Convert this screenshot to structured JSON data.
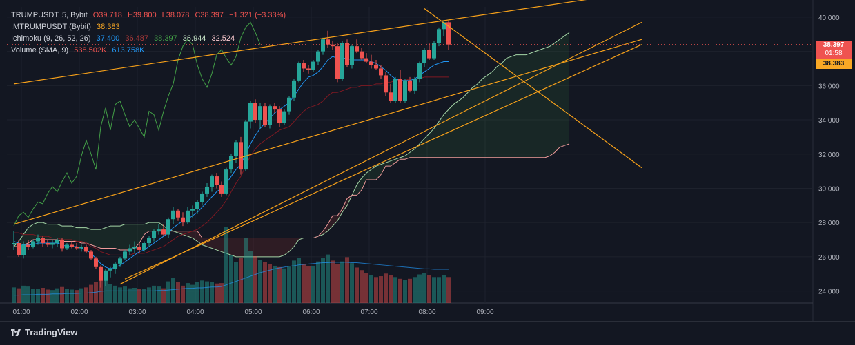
{
  "legend": {
    "row1": {
      "symbol": "TRUMPUSDT, 5, Bybit",
      "o": "O39.718",
      "h": "H39.800",
      "l": "L38.078",
      "c": "C38.397",
      "chg": "−1.321 (−3.33%)"
    },
    "row2": {
      "name": ".MTRUMPUSDT (Bybit)",
      "value": "38.383"
    },
    "row3": {
      "name": "Ichimoku (9, 26, 52, 26)",
      "v1": "37.400",
      "v2": "36.487",
      "v3": "38.397",
      "v4": "36.944",
      "v5": "32.524"
    },
    "row4": {
      "name": "Volume (SMA, 9)",
      "v1": "538.502K",
      "v2": "613.758K"
    }
  },
  "price_tags": {
    "last_price": "38.397",
    "countdown": "01:58",
    "mark_price": "38.383"
  },
  "footer": {
    "brand": "TradingView"
  },
  "colors": {
    "background": "#131722",
    "up": "#26a69a",
    "down": "#ef5350",
    "tenkan": "#2196f3",
    "kijun": "#801922",
    "chikou": "#43a047",
    "span_a": "#a5d6a7",
    "span_b": "#ef9a9a",
    "trendline": "#f7a11a"
  },
  "chart_data": {
    "type": "candlestick",
    "y_axis": {
      "ticks": [
        "40.000",
        "38.000",
        "36.000",
        "34.000",
        "32.000",
        "30.000",
        "28.000",
        "26.000",
        "24.000"
      ],
      "range": [
        23.3,
        40.6
      ]
    },
    "x_axis": {
      "ticks": [
        "01:00",
        "02:00",
        "03:00",
        "04:00",
        "05:00",
        "06:00",
        "07:00",
        "08:00",
        "09:00"
      ]
    },
    "candles": [
      [
        26.8,
        27.5,
        26.4,
        26.8
      ],
      [
        26.8,
        27.0,
        26.0,
        26.1
      ],
      [
        26.1,
        26.9,
        25.9,
        26.7
      ],
      [
        26.7,
        27.0,
        26.4,
        26.6
      ],
      [
        26.6,
        27.0,
        26.5,
        26.9
      ],
      [
        26.9,
        27.3,
        26.7,
        27.1
      ],
      [
        27.1,
        27.2,
        26.6,
        26.8
      ],
      [
        26.8,
        27.0,
        26.6,
        26.7
      ],
      [
        26.7,
        27.0,
        26.5,
        26.8
      ],
      [
        26.8,
        27.1,
        26.6,
        27.0
      ],
      [
        27.0,
        27.1,
        26.3,
        26.5
      ],
      [
        26.5,
        26.8,
        26.4,
        26.7
      ],
      [
        26.7,
        26.9,
        26.5,
        26.6
      ],
      [
        26.6,
        26.8,
        26.4,
        26.5
      ],
      [
        26.5,
        26.7,
        26.3,
        26.6
      ],
      [
        26.6,
        26.7,
        26.2,
        26.3
      ],
      [
        26.3,
        26.4,
        25.8,
        25.9
      ],
      [
        25.9,
        26.0,
        25.3,
        25.4
      ],
      [
        25.4,
        25.5,
        24.2,
        24.6
      ],
      [
        24.6,
        25.3,
        24.3,
        25.2
      ],
      [
        25.2,
        25.4,
        24.8,
        25.3
      ],
      [
        25.3,
        25.7,
        25.0,
        25.6
      ],
      [
        25.6,
        26.0,
        25.4,
        25.9
      ],
      [
        25.9,
        26.4,
        25.8,
        26.3
      ],
      [
        26.3,
        26.7,
        26.1,
        26.5
      ],
      [
        26.5,
        26.9,
        26.2,
        26.6
      ],
      [
        26.6,
        26.8,
        26.2,
        26.4
      ],
      [
        26.4,
        26.9,
        26.3,
        26.8
      ],
      [
        26.8,
        27.2,
        26.6,
        27.1
      ],
      [
        27.1,
        27.6,
        26.9,
        27.5
      ],
      [
        27.5,
        27.9,
        27.3,
        27.6
      ],
      [
        27.6,
        27.9,
        27.2,
        27.3
      ],
      [
        27.3,
        28.3,
        27.1,
        28.2
      ],
      [
        28.2,
        28.9,
        27.9,
        28.7
      ],
      [
        28.7,
        28.8,
        28.1,
        28.3
      ],
      [
        28.3,
        28.6,
        27.8,
        28.0
      ],
      [
        28.0,
        28.9,
        27.9,
        28.7
      ],
      [
        28.7,
        29.0,
        28.3,
        28.8
      ],
      [
        28.8,
        29.3,
        28.5,
        29.2
      ],
      [
        29.2,
        29.8,
        29.0,
        29.7
      ],
      [
        29.7,
        30.3,
        29.5,
        30.1
      ],
      [
        30.1,
        30.8,
        29.8,
        30.7
      ],
      [
        30.7,
        30.9,
        30.0,
        30.2
      ],
      [
        30.2,
        30.4,
        29.5,
        29.7
      ],
      [
        29.7,
        31.2,
        29.6,
        31.1
      ],
      [
        31.1,
        32.0,
        30.9,
        31.9
      ],
      [
        31.9,
        32.8,
        31.5,
        32.7
      ],
      [
        32.7,
        33.0,
        30.8,
        31.1
      ],
      [
        31.1,
        34.0,
        31.0,
        33.9
      ],
      [
        33.9,
        35.1,
        33.5,
        35.0
      ],
      [
        35.0,
        35.2,
        33.8,
        34.0
      ],
      [
        34.0,
        35.0,
        33.5,
        34.8
      ],
      [
        34.8,
        35.0,
        33.6,
        33.7
      ],
      [
        33.7,
        34.9,
        33.5,
        34.8
      ],
      [
        34.8,
        35.0,
        34.4,
        34.6
      ],
      [
        34.6,
        34.8,
        33.6,
        33.8
      ],
      [
        33.8,
        34.6,
        33.7,
        34.5
      ],
      [
        34.5,
        35.4,
        34.3,
        35.3
      ],
      [
        35.3,
        36.4,
        35.1,
        36.3
      ],
      [
        36.3,
        37.4,
        36.2,
        37.3
      ],
      [
        37.3,
        37.5,
        36.8,
        37.0
      ],
      [
        37.0,
        37.2,
        36.7,
        36.9
      ],
      [
        36.9,
        37.5,
        36.8,
        37.4
      ],
      [
        37.4,
        38.1,
        37.2,
        38.0
      ],
      [
        38.0,
        38.8,
        37.8,
        38.7
      ],
      [
        38.7,
        39.2,
        38.2,
        38.4
      ],
      [
        38.4,
        38.6,
        38.1,
        38.3
      ],
      [
        38.3,
        38.5,
        36.2,
        36.4
      ],
      [
        36.4,
        38.6,
        36.3,
        38.5
      ],
      [
        38.5,
        38.7,
        37.1,
        37.2
      ],
      [
        37.2,
        38.4,
        37.0,
        38.3
      ],
      [
        38.3,
        38.7,
        37.9,
        38.0
      ],
      [
        38.0,
        38.2,
        37.5,
        37.6
      ],
      [
        37.6,
        37.9,
        37.3,
        37.4
      ],
      [
        37.4,
        37.8,
        37.0,
        37.2
      ],
      [
        37.2,
        37.5,
        36.9,
        37.0
      ],
      [
        37.0,
        37.2,
        36.4,
        36.6
      ],
      [
        36.6,
        36.8,
        35.4,
        35.6
      ],
      [
        35.6,
        36.1,
        35.0,
        35.1
      ],
      [
        35.1,
        36.5,
        35.0,
        36.4
      ],
      [
        36.4,
        36.9,
        35.0,
        35.1
      ],
      [
        35.1,
        36.4,
        35.0,
        36.3
      ],
      [
        36.3,
        36.5,
        35.6,
        35.7
      ],
      [
        35.7,
        36.5,
        35.5,
        36.4
      ],
      [
        36.4,
        37.4,
        36.2,
        37.3
      ],
      [
        37.3,
        38.2,
        37.1,
        38.1
      ],
      [
        38.1,
        38.5,
        37.5,
        37.6
      ],
      [
        37.6,
        38.6,
        37.5,
        38.5
      ],
      [
        38.5,
        39.4,
        38.3,
        39.3
      ],
      [
        39.3,
        39.8,
        38.9,
        39.7
      ],
      [
        39.7,
        39.8,
        38.1,
        38.4
      ]
    ],
    "volume": [
      [
        36,
        1
      ],
      [
        34,
        0
      ],
      [
        40,
        1
      ],
      [
        38,
        1
      ],
      [
        33,
        1
      ],
      [
        32,
        1
      ],
      [
        35,
        0
      ],
      [
        31,
        0
      ],
      [
        30,
        1
      ],
      [
        34,
        1
      ],
      [
        37,
        0
      ],
      [
        33,
        1
      ],
      [
        31,
        1
      ],
      [
        30,
        0
      ],
      [
        34,
        1
      ],
      [
        36,
        0
      ],
      [
        42,
        0
      ],
      [
        48,
        0
      ],
      [
        70,
        0
      ],
      [
        55,
        1
      ],
      [
        44,
        1
      ],
      [
        40,
        1
      ],
      [
        36,
        1
      ],
      [
        38,
        1
      ],
      [
        34,
        1
      ],
      [
        35,
        1
      ],
      [
        33,
        0
      ],
      [
        32,
        1
      ],
      [
        36,
        1
      ],
      [
        40,
        1
      ],
      [
        38,
        1
      ],
      [
        34,
        0
      ],
      [
        50,
        1
      ],
      [
        58,
        1
      ],
      [
        48,
        0
      ],
      [
        40,
        0
      ],
      [
        46,
        1
      ],
      [
        42,
        1
      ],
      [
        48,
        1
      ],
      [
        52,
        1
      ],
      [
        50,
        1
      ],
      [
        48,
        1
      ],
      [
        45,
        0
      ],
      [
        46,
        0
      ],
      [
        175,
        1
      ],
      [
        110,
        1
      ],
      [
        95,
        1
      ],
      [
        105,
        0
      ],
      [
        150,
        1
      ],
      [
        120,
        1
      ],
      [
        108,
        0
      ],
      [
        100,
        1
      ],
      [
        95,
        0
      ],
      [
        90,
        0
      ],
      [
        86,
        1
      ],
      [
        83,
        0
      ],
      [
        80,
        1
      ],
      [
        84,
        1
      ],
      [
        98,
        1
      ],
      [
        104,
        1
      ],
      [
        90,
        0
      ],
      [
        85,
        0
      ],
      [
        86,
        1
      ],
      [
        96,
        1
      ],
      [
        104,
        1
      ],
      [
        112,
        1
      ],
      [
        98,
        0
      ],
      [
        90,
        0
      ],
      [
        96,
        1
      ],
      [
        106,
        0
      ],
      [
        92,
        1
      ],
      [
        82,
        0
      ],
      [
        76,
        0
      ],
      [
        70,
        0
      ],
      [
        64,
        1
      ],
      [
        60,
        0
      ],
      [
        62,
        0
      ],
      [
        68,
        0
      ],
      [
        64,
        0
      ],
      [
        60,
        1
      ],
      [
        56,
        0
      ],
      [
        54,
        1
      ],
      [
        56,
        0
      ],
      [
        60,
        1
      ],
      [
        66,
        1
      ],
      [
        70,
        1
      ],
      [
        64,
        0
      ],
      [
        60,
        1
      ],
      [
        60,
        1
      ],
      [
        65,
        1
      ],
      [
        60,
        0
      ]
    ],
    "volume_ma": [
      18,
      18,
      19,
      19,
      19,
      20,
      20,
      20,
      21,
      21,
      21,
      22,
      22,
      22,
      23,
      23,
      24,
      25,
      27,
      28,
      28,
      28,
      28,
      28,
      28,
      28,
      28,
      28,
      28,
      28,
      29,
      29,
      30,
      31,
      32,
      33,
      34,
      34,
      35,
      35,
      36,
      37,
      37,
      38,
      42,
      46,
      50,
      54,
      58,
      62,
      66,
      70,
      73,
      76,
      79,
      81,
      83,
      85,
      86,
      88,
      89,
      90,
      91,
      92,
      93,
      93,
      94,
      94,
      94,
      94,
      93,
      93,
      92,
      91,
      90,
      89,
      88,
      87,
      86,
      85,
      84,
      83,
      82,
      81,
      80,
      79,
      79,
      78,
      78,
      78,
      78
    ],
    "tenkan": [
      26.9,
      26.8,
      26.7,
      26.7,
      26.7,
      26.8,
      26.8,
      26.8,
      26.8,
      26.8,
      26.7,
      26.6,
      26.6,
      26.6,
      26.5,
      26.4,
      26.2,
      25.9,
      25.6,
      25.4,
      25.3,
      25.4,
      25.5,
      25.7,
      25.9,
      26.1,
      26.3,
      26.4,
      26.6,
      26.8,
      27.0,
      27.2,
      27.4,
      27.7,
      27.9,
      28.1,
      28.2,
      28.4,
      28.6,
      28.9,
      29.2,
      29.5,
      29.8,
      30.0,
      30.3,
      30.7,
      31.1,
      31.4,
      32.0,
      32.6,
      33.1,
      33.5,
      33.8,
      34.1,
      34.4,
      34.6,
      34.8,
      35.0,
      35.4,
      35.8,
      36.2,
      36.5,
      36.6,
      36.8,
      37.1,
      37.5,
      37.7,
      37.6,
      37.6,
      37.6,
      37.5,
      37.5,
      37.5,
      37.5,
      37.4,
      37.3,
      37.1,
      36.9,
      36.6,
      36.4,
      36.3,
      36.3,
      36.3,
      36.4,
      36.6,
      36.8,
      37.0,
      37.2,
      37.3,
      37.4,
      37.4
    ],
    "kijun": [
      27.4,
      27.4,
      27.3,
      27.3,
      27.3,
      27.2,
      27.2,
      27.2,
      27.1,
      27.1,
      27.0,
      27.0,
      27.0,
      26.9,
      26.9,
      26.8,
      26.6,
      26.5,
      26.3,
      26.2,
      26.1,
      26.1,
      26.1,
      26.1,
      26.1,
      26.2,
      26.2,
      26.2,
      26.3,
      26.4,
      26.5,
      26.6,
      26.8,
      27.0,
      27.2,
      27.3,
      27.4,
      27.5,
      27.6,
      27.8,
      28.0,
      28.3,
      28.6,
      28.9,
      29.3,
      29.8,
      30.3,
      30.7,
      31.3,
      31.9,
      32.3,
      32.6,
      32.8,
      33.0,
      33.2,
      33.4,
      33.5,
      33.6,
      33.9,
      34.2,
      34.5,
      34.7,
      34.8,
      34.9,
      35.1,
      35.4,
      35.6,
      35.6,
      35.7,
      35.8,
      35.9,
      35.9,
      36.0,
      36.0,
      36.0,
      36.1,
      36.1,
      36.2,
      36.2,
      36.3,
      36.3,
      36.3,
      36.4,
      36.4,
      36.4,
      36.5,
      36.5,
      36.5,
      36.5,
      36.5,
      36.5
    ],
    "span_a": [
      26.6,
      26.9,
      27.3,
      27.7,
      27.9,
      28.0,
      28.0,
      27.9,
      27.9,
      27.9,
      27.8,
      27.8,
      27.8,
      27.7,
      27.7,
      27.7,
      27.6,
      27.6,
      27.6,
      27.7,
      27.8,
      27.8,
      27.8,
      27.9,
      27.9,
      27.9,
      27.9,
      27.9,
      28.0,
      28.0,
      28.0,
      27.8,
      27.6,
      27.5,
      27.4,
      27.3,
      27.2,
      27.1,
      26.9,
      26.7,
      26.6,
      26.5,
      26.4,
      26.3,
      26.2,
      26.1,
      26.0,
      26.0,
      26.0,
      26.0,
      26.0,
      26.0,
      26.0,
      26.0,
      26.0,
      26.0,
      26.1,
      26.3,
      26.6,
      27.0,
      27.1,
      27.1,
      27.1,
      27.2,
      27.3,
      27.5,
      27.8,
      28.1,
      28.6,
      29.0,
      29.6,
      30.2,
      30.6,
      30.9,
      31.1,
      31.3,
      31.4,
      31.5,
      31.6,
      31.7,
      31.8,
      31.9,
      32.1,
      32.3,
      32.6,
      32.9,
      33.2,
      33.5,
      33.9,
      34.3,
      34.6,
      34.9,
      35.1,
      35.3,
      35.6,
      35.9,
      36.1,
      36.4,
      36.6,
      36.8,
      37.1,
      37.3,
      37.6,
      37.7,
      37.8,
      37.8,
      37.8,
      37.9,
      38.0,
      38.1,
      38.2,
      38.3,
      38.5,
      38.7,
      38.9,
      39.1
    ],
    "span_b": [
      26.6,
      26.6,
      26.7,
      26.8,
      27.0,
      27.0,
      27.0,
      27.0,
      27.0,
      27.0,
      26.9,
      26.9,
      26.9,
      26.9,
      26.8,
      26.8,
      26.7,
      26.6,
      26.5,
      26.5,
      26.5,
      26.5,
      26.4,
      26.4,
      26.4,
      26.5,
      26.8,
      27.3,
      27.5,
      27.5,
      27.5,
      27.5,
      27.5,
      27.5,
      27.5,
      27.5,
      27.5,
      27.5,
      27.5,
      27.1,
      27.1,
      27.1,
      27.1,
      27.1,
      27.1,
      27.1,
      27.1,
      27.1,
      27.1,
      27.1,
      27.1,
      27.1,
      27.1,
      27.1,
      27.1,
      27.1,
      27.1,
      27.1,
      27.1,
      27.1,
      27.1,
      27.1,
      27.1,
      27.2,
      27.5,
      27.9,
      28.4,
      28.4,
      28.8,
      29.4,
      29.6,
      29.6,
      29.9,
      30.5,
      30.5,
      30.5,
      30.8,
      31.3,
      31.3,
      31.5,
      31.7,
      31.7,
      31.8,
      31.8,
      31.8,
      31.8,
      31.8,
      31.8,
      31.8,
      31.8,
      31.8,
      31.8,
      31.8,
      31.8,
      31.8,
      31.8,
      31.8,
      31.8,
      31.8,
      31.8,
      31.8,
      31.8,
      31.8,
      31.8,
      31.8,
      31.8,
      31.8,
      31.8,
      31.8,
      31.8,
      31.8,
      31.9,
      32.1,
      32.4,
      32.5,
      32.6
    ],
    "chikou": [
      27.8,
      28.4,
      28.6,
      28.3,
      28.8,
      29.2,
      29.1,
      29.7,
      30.1,
      29.8,
      30.4,
      30.9,
      30.3,
      30.7,
      31.9,
      32.8,
      32.0,
      31.1,
      33.6,
      34.7,
      33.4,
      34.9,
      35.1,
      34.3,
      33.6,
      34.0,
      33.5,
      33.0,
      34.5,
      34.3,
      33.4,
      34.5,
      35.4,
      36.1,
      37.5,
      38.3,
      38.7,
      38.4,
      37.2,
      36.4,
      35.9,
      36.7,
      37.8,
      38.1,
      37.6,
      37.2,
      37.7,
      38.8,
      39.4,
      39.7,
      39.1,
      38.4
    ],
    "chikou_start": 0,
    "trendlines": [
      {
        "from": [
          0,
          36.1
        ],
        "to": [
          130,
          41.5
        ]
      },
      {
        "from": [
          0,
          27.9
        ],
        "to": [
          130,
          38.7
        ]
      },
      {
        "from": [
          22,
          24.4
        ],
        "to": [
          130,
          39.7
        ]
      },
      {
        "from": [
          23,
          24.7
        ],
        "to": [
          130,
          38.4
        ]
      },
      {
        "from": [
          85,
          40.5
        ],
        "to": [
          130,
          31.2
        ]
      }
    ],
    "total_slots": 130
  }
}
